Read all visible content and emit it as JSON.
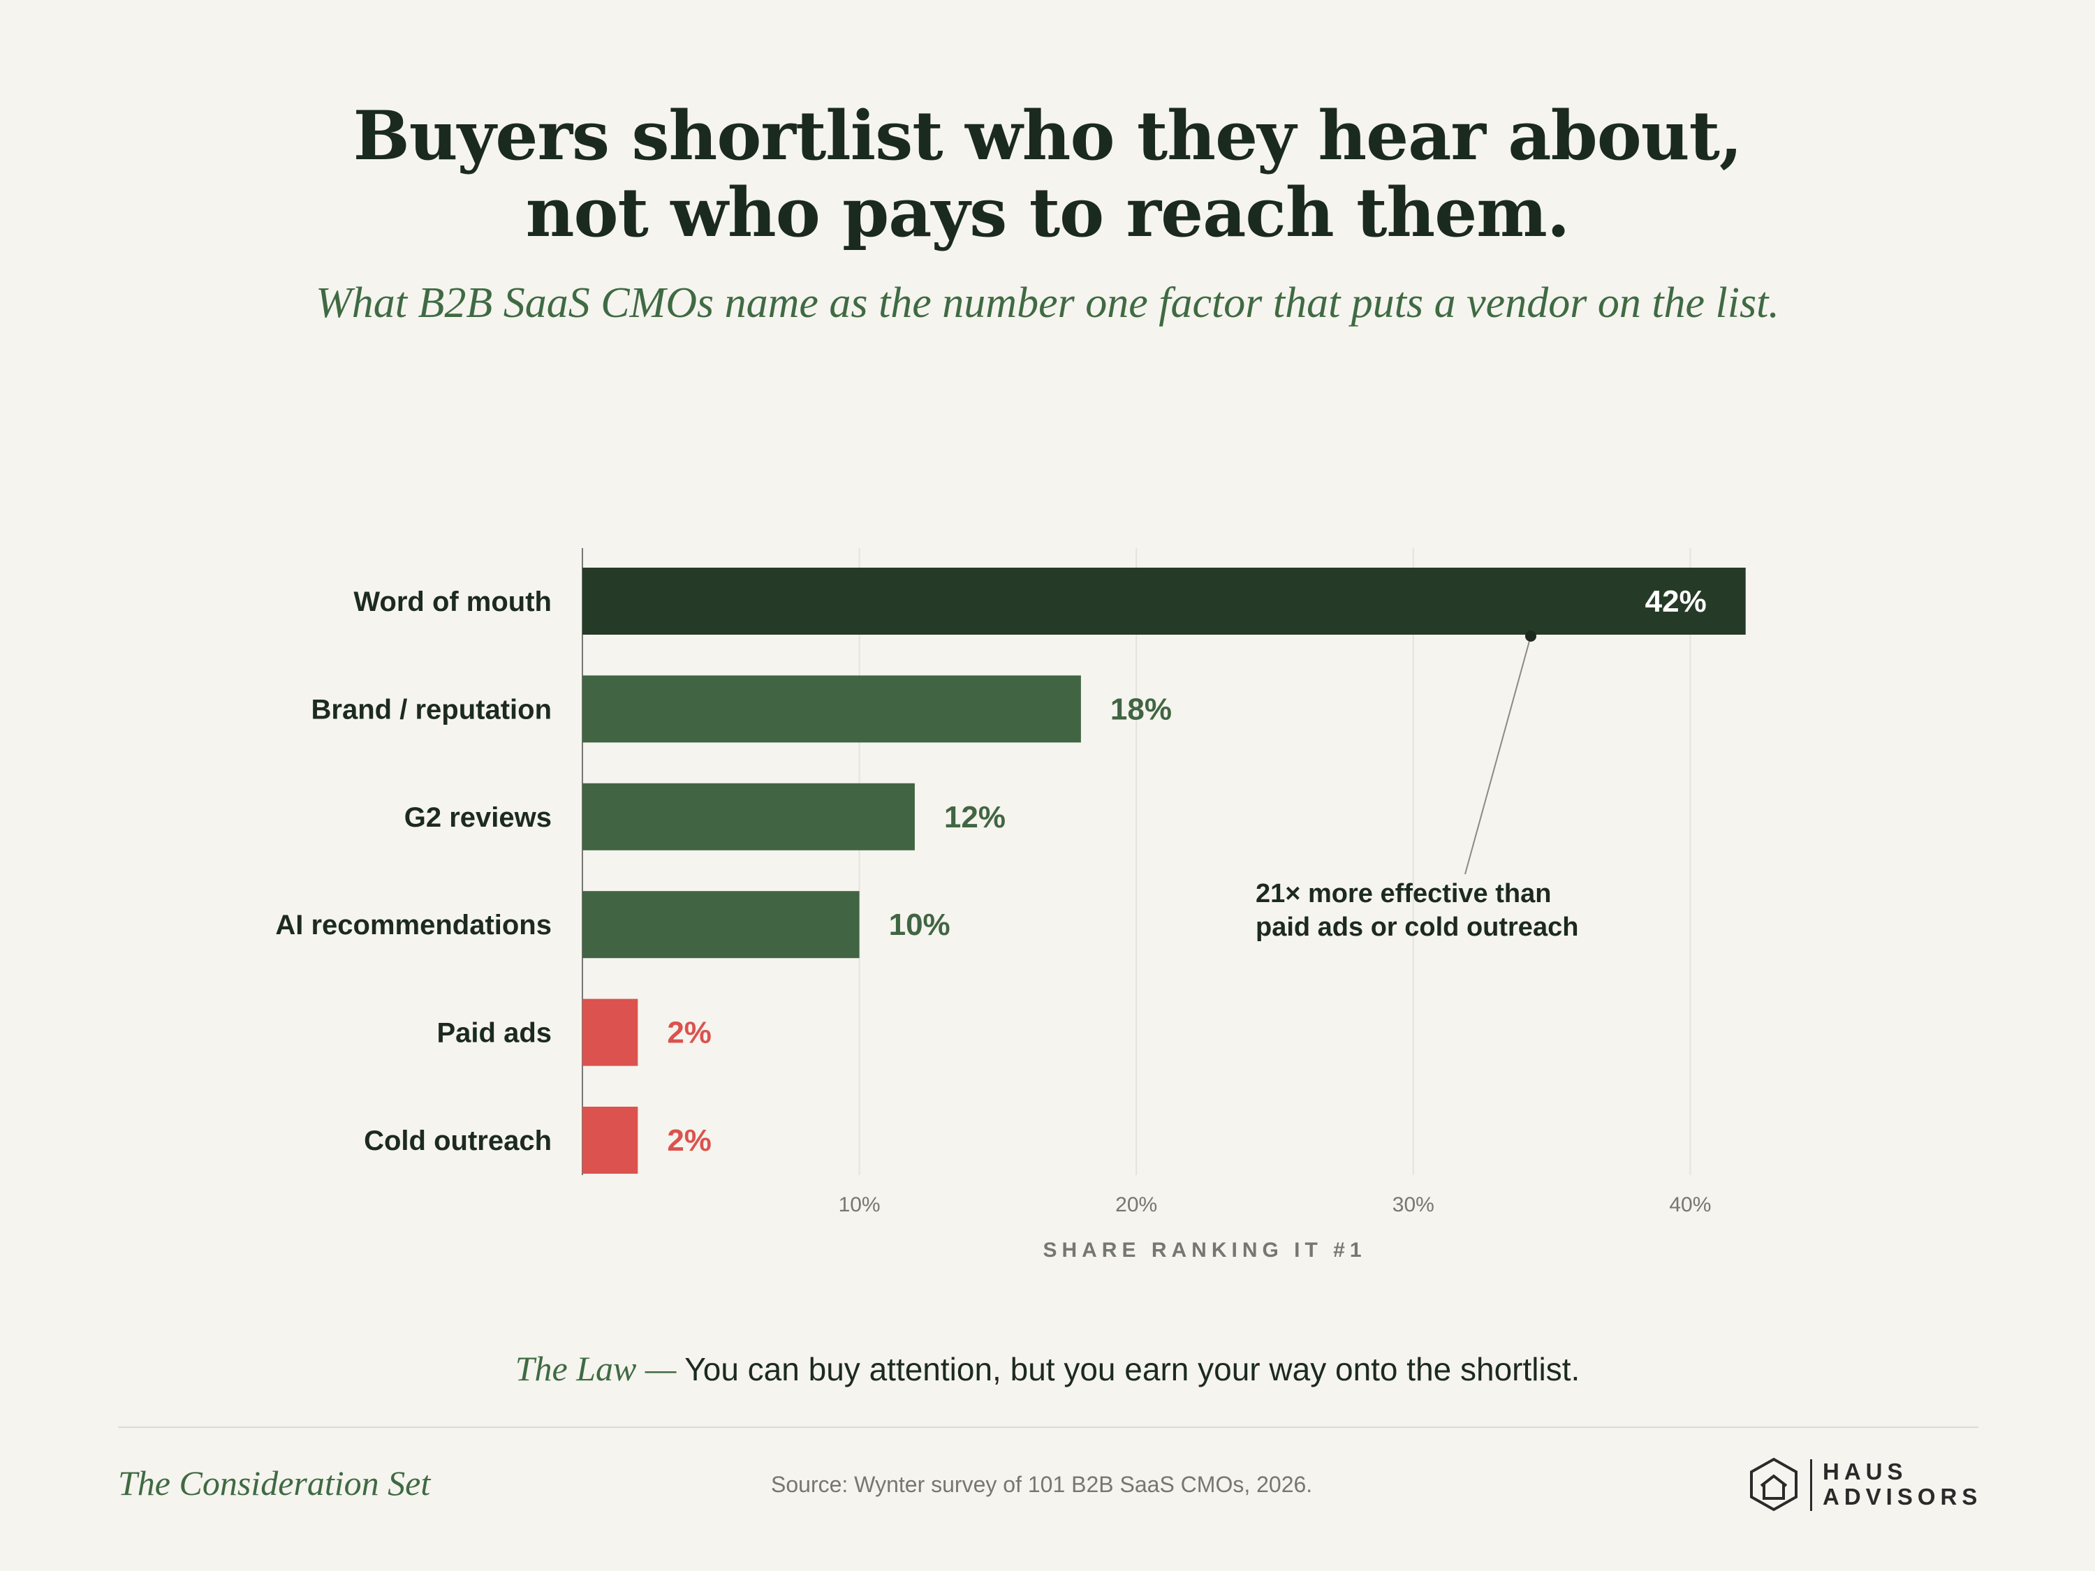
{
  "title_line1": "Buyers shortlist who they hear about,",
  "title_line2": "not who pays to reach them.",
  "subtitle": "What B2B SaaS CMOs name as the number one factor that puts a vendor on the list.",
  "chart_data": {
    "type": "bar",
    "orientation": "horizontal",
    "categories": [
      "Word of mouth",
      "Brand / reputation",
      "G2 reviews",
      "AI recommendations",
      "Paid ads",
      "Cold outreach"
    ],
    "values": [
      42,
      18,
      12,
      10,
      2,
      2
    ],
    "value_labels": [
      "42%",
      "18%",
      "12%",
      "10%",
      "2%",
      "2%"
    ],
    "xlabel": "SHARE RANKING IT #1",
    "xlim": [
      0,
      45
    ],
    "xticks": [
      10,
      20,
      30,
      40
    ],
    "xtick_labels": [
      "10%",
      "20%",
      "30%",
      "40%"
    ],
    "grid": "vertical",
    "annotation": {
      "line1": "21× more effective than",
      "line2": "paid ads or cold outreach",
      "points_to": "Word of mouth"
    },
    "colors": {
      "highlight": "#263a28",
      "default": "#416543",
      "negative": "#dc524e"
    },
    "color_groups": [
      "highlight",
      "default",
      "default",
      "default",
      "negative",
      "negative"
    ]
  },
  "law": {
    "lead": "The Law —",
    "text": " You can buy attention, but you earn your way onto the shortlist."
  },
  "footer": {
    "series_name": "The Consideration Set",
    "source": "Source: Wynter survey of 101 B2B SaaS CMOs, 2026.",
    "logo_line1": "HAUS",
    "logo_line2": "ADVISORS"
  }
}
